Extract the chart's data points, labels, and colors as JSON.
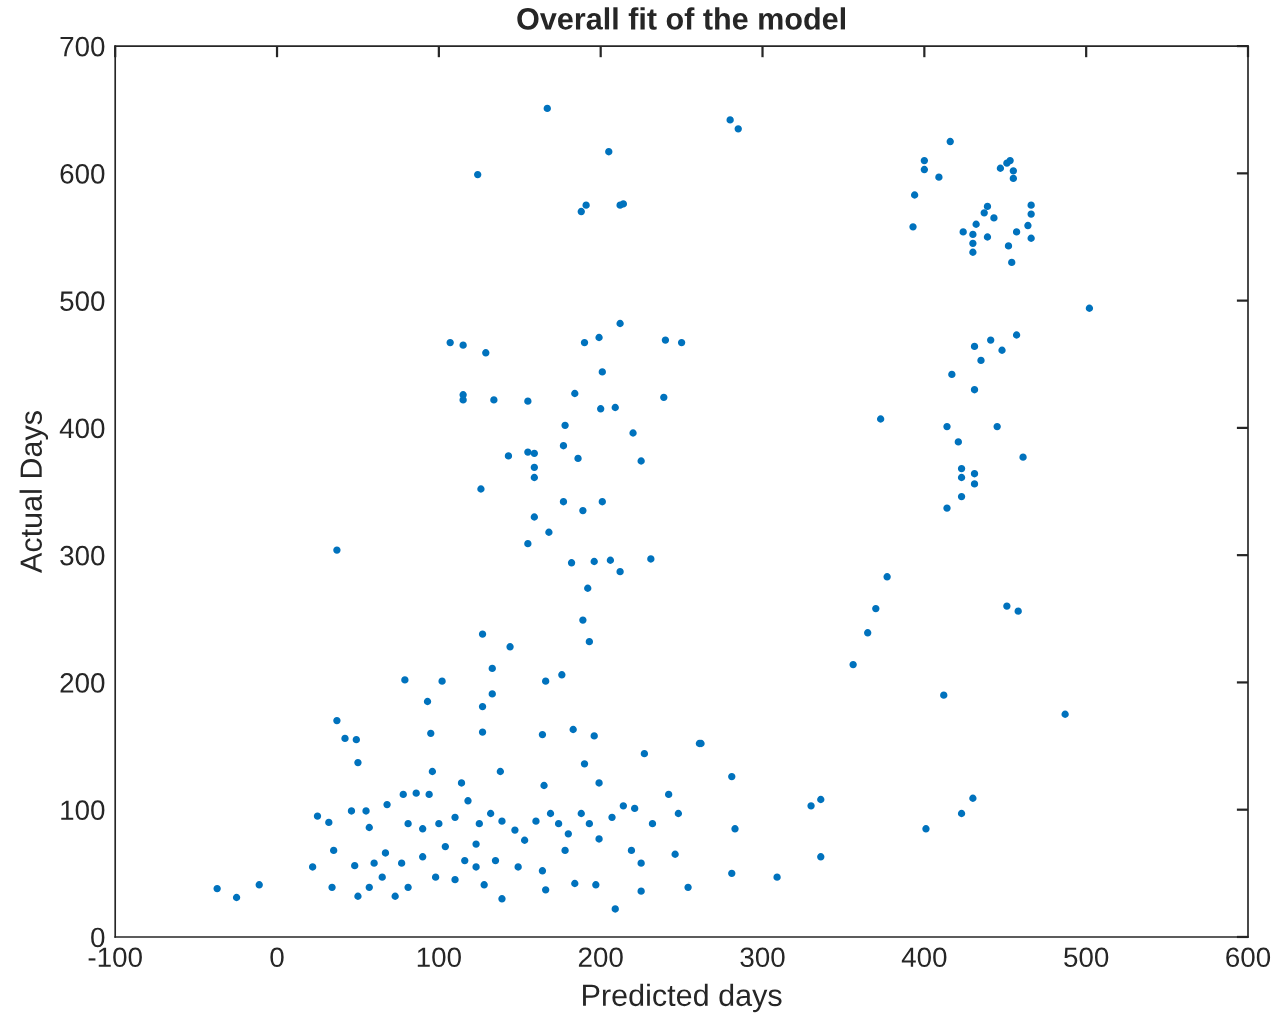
{
  "chart_data": {
    "type": "scatter",
    "title": "Overall fit of the model",
    "xlabel": "Predicted days",
    "ylabel": "Actual Days",
    "xlim": [
      -100,
      600
    ],
    "ylim": [
      0,
      700
    ],
    "xticks": [
      -100,
      0,
      100,
      200,
      300,
      400,
      500,
      600
    ],
    "yticks": [
      0,
      100,
      200,
      300,
      400,
      500,
      600,
      700
    ],
    "grid": false,
    "legend": false,
    "marker": "circle",
    "series": [
      {
        "color": "#0072bd",
        "x": [
          280,
          285,
          416,
          400,
          400,
          409,
          394,
          393,
          424,
          430,
          430,
          430,
          439,
          437,
          443,
          439,
          432,
          447,
          453,
          451,
          455,
          455,
          466,
          466,
          464,
          457,
          466,
          452,
          454,
          502,
          457,
          441,
          448,
          431,
          435,
          417,
          431,
          373,
          414,
          445,
          421,
          461,
          423,
          431,
          423,
          431,
          423,
          414,
          377,
          370,
          365,
          356,
          451,
          458,
          412,
          487,
          262,
          281,
          283,
          281,
          309,
          330,
          336,
          336,
          401,
          423,
          430,
          167,
          205,
          124,
          191,
          188,
          212,
          214,
          212,
          107,
          115,
          129,
          190,
          199,
          240,
          250,
          201,
          184,
          239,
          115,
          115,
          134,
          155,
          200,
          209,
          178,
          177,
          220,
          143,
          155,
          159,
          159,
          159,
          186,
          225,
          126,
          177,
          189,
          201,
          159,
          168,
          155,
          182,
          196,
          206,
          212,
          231,
          192,
          37,
          127,
          189,
          144,
          79,
          102,
          133,
          133,
          127,
          176,
          166,
          193,
          93,
          37,
          42,
          49,
          50,
          95,
          127,
          164,
          183,
          196,
          190,
          227,
          261,
          96,
          114,
          138,
          199,
          165,
          25,
          32,
          46,
          55,
          68,
          78,
          86,
          94,
          81,
          90,
          100,
          110,
          118,
          125,
          132,
          139,
          147,
          153,
          160,
          169,
          174,
          180,
          188,
          193,
          199,
          207,
          214,
          221,
          232,
          242,
          248,
          246,
          219,
          225,
          225,
          254,
          209,
          197,
          184,
          166,
          139,
          128,
          110,
          98,
          81,
          73,
          65,
          57,
          50,
          34,
          22,
          -11,
          -25,
          -37,
          35,
          48,
          60,
          67,
          77,
          90,
          116,
          123,
          135,
          149,
          164,
          178,
          104,
          57,
          123
        ],
        "values": [
          642,
          635,
          625,
          610,
          603,
          597,
          583,
          558,
          554,
          552,
          545,
          538,
          574,
          569,
          565,
          550,
          560,
          604,
          610,
          608,
          602,
          596,
          575,
          568,
          559,
          554,
          549,
          543,
          530,
          494,
          473,
          469,
          461,
          464,
          453,
          442,
          430,
          407,
          401,
          401,
          389,
          377,
          368,
          364,
          361,
          356,
          346,
          337,
          283,
          258,
          239,
          214,
          260,
          256,
          190,
          175,
          152,
          126,
          85,
          50,
          47,
          103,
          108,
          63,
          85,
          97,
          109,
          651,
          617,
          599,
          575,
          570,
          575,
          576,
          482,
          467,
          465,
          459,
          467,
          471,
          469,
          467,
          444,
          427,
          424,
          426,
          422,
          422,
          421,
          415,
          416,
          402,
          386,
          396,
          378,
          381,
          380,
          369,
          361,
          376,
          374,
          352,
          342,
          335,
          342,
          330,
          318,
          309,
          294,
          295,
          296,
          287,
          297,
          274,
          304,
          238,
          249,
          228,
          202,
          201,
          211,
          191,
          181,
          206,
          201,
          232,
          185,
          170,
          156,
          155,
          137,
          160,
          161,
          159,
          163,
          158,
          136,
          144,
          152,
          130,
          121,
          130,
          121,
          119,
          95,
          90,
          99,
          99,
          104,
          112,
          113,
          112,
          89,
          85,
          89,
          94,
          107,
          89,
          97,
          91,
          84,
          76,
          91,
          97,
          89,
          81,
          97,
          89,
          77,
          94,
          103,
          101,
          89,
          112,
          97,
          65,
          68,
          58,
          36,
          39,
          22,
          41,
          42,
          37,
          30,
          41,
          45,
          47,
          39,
          32,
          47,
          39,
          32,
          39,
          55,
          41,
          31,
          38,
          68,
          56,
          58,
          66,
          58,
          63,
          60,
          55,
          60,
          55,
          52,
          68,
          71,
          86,
          73
        ]
      }
    ]
  }
}
